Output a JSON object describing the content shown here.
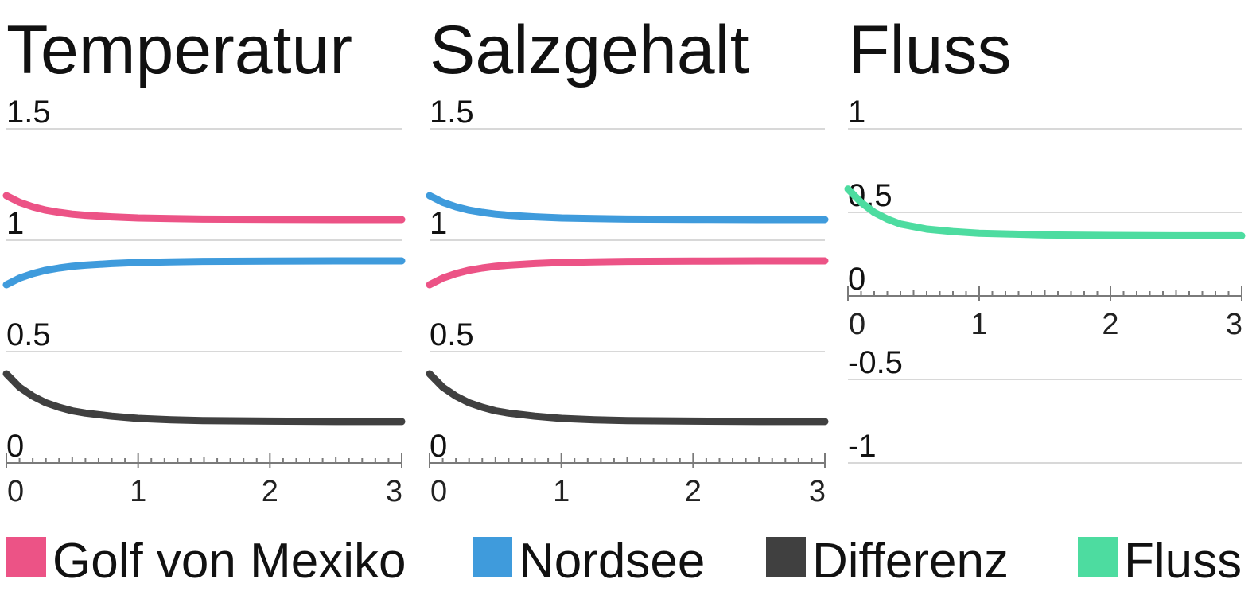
{
  "colors": {
    "golf": "#ec5386",
    "nordsee": "#3f9bdc",
    "differenz": "#404040",
    "fluss": "#4ddca0",
    "grid": "#d8d8d8",
    "axis": "#7a7a7a"
  },
  "legend": [
    {
      "label": "Golf von Mexiko",
      "color": "#ec5386"
    },
    {
      "label": "Nordsee",
      "color": "#3f9bdc"
    },
    {
      "label": "Differenz",
      "color": "#404040"
    },
    {
      "label": "Fluss",
      "color": "#4ddca0"
    }
  ],
  "chart_data": [
    {
      "type": "line",
      "title": "Temperatur",
      "xlim": [
        0,
        3
      ],
      "ylim": [
        0,
        1.5
      ],
      "xticks": [
        "0",
        "1",
        "2",
        "3"
      ],
      "yticks": [
        "0",
        "0.5",
        "1",
        "1.5"
      ],
      "x": [
        0,
        0.1,
        0.2,
        0.3,
        0.4,
        0.5,
        0.6,
        0.8,
        1.0,
        1.25,
        1.5,
        2.0,
        2.5,
        3.0
      ],
      "series": [
        {
          "name": "Golf von Mexiko",
          "color": "#ec5386",
          "values": [
            1.2,
            1.17,
            1.15,
            1.135,
            1.125,
            1.117,
            1.112,
            1.105,
            1.1,
            1.097,
            1.095,
            1.094,
            1.093,
            1.093
          ]
        },
        {
          "name": "Nordsee",
          "color": "#3f9bdc",
          "values": [
            0.8,
            0.83,
            0.85,
            0.865,
            0.875,
            0.883,
            0.888,
            0.895,
            0.9,
            0.903,
            0.905,
            0.906,
            0.907,
            0.907
          ]
        },
        {
          "name": "Differenz",
          "color": "#404040",
          "values": [
            0.4,
            0.34,
            0.3,
            0.27,
            0.25,
            0.234,
            0.224,
            0.21,
            0.2,
            0.194,
            0.19,
            0.188,
            0.186,
            0.186
          ]
        }
      ]
    },
    {
      "type": "line",
      "title": "Salzgehalt",
      "xlim": [
        0,
        3
      ],
      "ylim": [
        0,
        1.5
      ],
      "xticks": [
        "0",
        "1",
        "2",
        "3"
      ],
      "yticks": [
        "0",
        "0.5",
        "1",
        "1.5"
      ],
      "x": [
        0,
        0.1,
        0.2,
        0.3,
        0.4,
        0.5,
        0.6,
        0.8,
        1.0,
        1.25,
        1.5,
        2.0,
        2.5,
        3.0
      ],
      "series": [
        {
          "name": "Nordsee",
          "color": "#3f9bdc",
          "values": [
            1.2,
            1.17,
            1.15,
            1.135,
            1.125,
            1.117,
            1.112,
            1.105,
            1.1,
            1.097,
            1.095,
            1.094,
            1.093,
            1.093
          ]
        },
        {
          "name": "Golf von Mexiko",
          "color": "#ec5386",
          "values": [
            0.8,
            0.83,
            0.85,
            0.865,
            0.875,
            0.883,
            0.888,
            0.895,
            0.9,
            0.903,
            0.905,
            0.906,
            0.907,
            0.907
          ]
        },
        {
          "name": "Differenz",
          "color": "#404040",
          "values": [
            0.4,
            0.34,
            0.3,
            0.27,
            0.25,
            0.234,
            0.224,
            0.21,
            0.2,
            0.194,
            0.19,
            0.188,
            0.186,
            0.186
          ]
        }
      ]
    },
    {
      "type": "line",
      "title": "Fluss",
      "xlim": [
        0,
        3
      ],
      "ylim": [
        -1,
        1
      ],
      "xticks": [
        "0",
        "1",
        "2",
        "3"
      ],
      "yticks": [
        "-1",
        "-0.5",
        "0",
        "0.5",
        "1"
      ],
      "x": [
        0,
        0.1,
        0.2,
        0.3,
        0.4,
        0.5,
        0.6,
        0.8,
        1.0,
        1.25,
        1.5,
        2.0,
        2.5,
        3.0
      ],
      "series": [
        {
          "name": "Fluss",
          "color": "#4ddca0",
          "values": [
            0.64,
            0.56,
            0.5,
            0.46,
            0.43,
            0.415,
            0.4,
            0.385,
            0.375,
            0.37,
            0.365,
            0.362,
            0.36,
            0.36
          ]
        }
      ]
    }
  ]
}
